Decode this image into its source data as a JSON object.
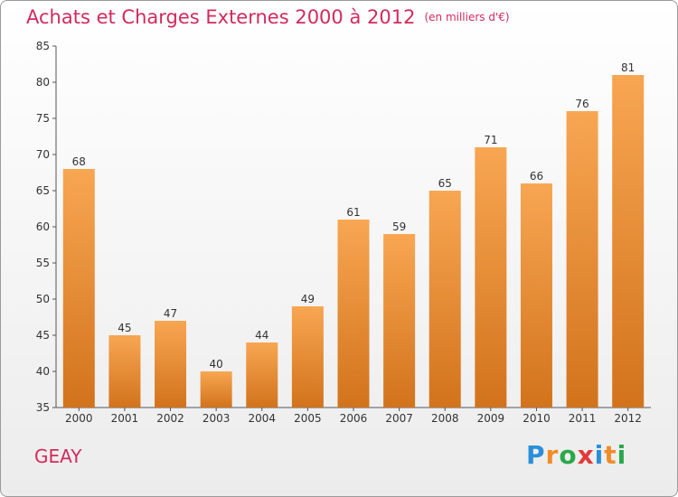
{
  "title": "Achats et Charges Externes 2000 à 2012",
  "unit": "(en milliers d'€)",
  "town": "GEAY",
  "logo": {
    "letters": [
      "P",
      "r",
      "o",
      "x",
      "i",
      "t",
      "i"
    ],
    "colors": [
      "#2a8fd8",
      "#f28c28",
      "#2aa84a",
      "#e23a3a",
      "#2a8fd8",
      "#f28c28",
      "#2aa84a"
    ]
  },
  "colors": {
    "bar_top": "#f8a652",
    "bar_bottom": "#d2731c",
    "title": "#d22a5e"
  },
  "chart_data": {
    "type": "bar",
    "title": "Achats et Charges Externes 2000 à 2012",
    "categories": [
      "2000",
      "2001",
      "2002",
      "2003",
      "2004",
      "2005",
      "2006",
      "2007",
      "2008",
      "2009",
      "2010",
      "2011",
      "2012"
    ],
    "values": [
      68,
      45,
      47,
      40,
      44,
      49,
      61,
      59,
      65,
      71,
      66,
      76,
      81
    ],
    "ylim": [
      35,
      85
    ],
    "yticks": [
      35,
      40,
      45,
      50,
      55,
      60,
      65,
      70,
      75,
      80,
      85
    ],
    "grid": false,
    "legend": "none"
  }
}
